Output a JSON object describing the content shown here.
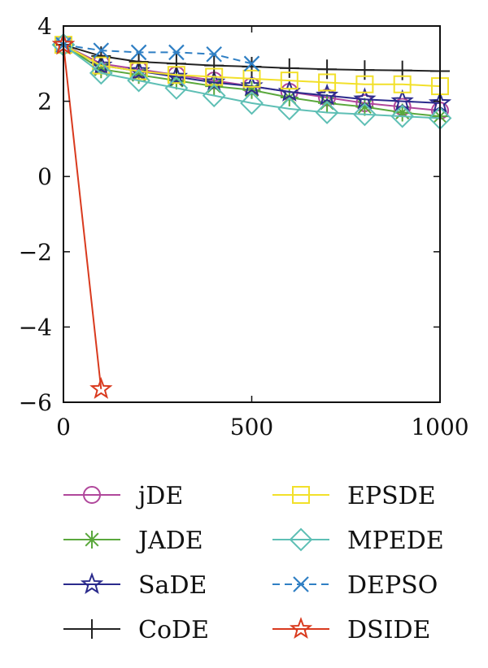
{
  "chart_data": {
    "type": "line",
    "title": "",
    "xlabel": "",
    "ylabel": "",
    "xlim": [
      0,
      1000
    ],
    "ylim": [
      -6,
      4
    ],
    "x_ticks": [
      "0",
      "500",
      "1000"
    ],
    "y_ticks": [
      "4",
      "2",
      "0",
      "−2",
      "−4",
      "−6"
    ],
    "y_tick_values": [
      4,
      2,
      0,
      -2,
      -4,
      -6
    ],
    "x_tick_values": [
      0,
      500,
      1000
    ],
    "grid": false,
    "legend_position": "bottom, two columns",
    "series": [
      {
        "name": "jDE",
        "color": "#b0479b",
        "marker": "circle",
        "dash": "solid",
        "x": [
          0,
          100,
          200,
          300,
          400,
          500,
          600,
          700,
          800,
          900,
          1000
        ],
        "y": [
          3.5,
          3.0,
          2.85,
          2.7,
          2.55,
          2.4,
          2.25,
          2.1,
          1.95,
          1.85,
          1.75
        ]
      },
      {
        "name": "JADE",
        "color": "#5aa83c",
        "marker": "asterisk",
        "dash": "solid",
        "x": [
          0,
          100,
          200,
          300,
          400,
          500,
          600,
          700,
          800,
          900,
          1000
        ],
        "y": [
          3.5,
          2.85,
          2.7,
          2.55,
          2.4,
          2.3,
          2.1,
          1.95,
          1.85,
          1.7,
          1.6
        ]
      },
      {
        "name": "SaDE",
        "color": "#2b2b8c",
        "marker": "star",
        "dash": "solid",
        "x": [
          0,
          100,
          200,
          300,
          400,
          500,
          600,
          700,
          800,
          900,
          1000
        ],
        "y": [
          3.5,
          2.95,
          2.8,
          2.65,
          2.5,
          2.4,
          2.25,
          2.15,
          2.05,
          2.0,
          1.95
        ]
      },
      {
        "name": "CoDE",
        "color": "#222222",
        "marker": "plus",
        "dash": "solid",
        "x": [
          0,
          100,
          200,
          300,
          400,
          500,
          600,
          700,
          800,
          900,
          1000
        ],
        "y": [
          3.5,
          3.2,
          3.05,
          3.0,
          2.95,
          2.92,
          2.88,
          2.85,
          2.83,
          2.82,
          2.8
        ]
      },
      {
        "name": "EPSDE",
        "color": "#f2e02a",
        "marker": "square",
        "dash": "solid",
        "x": [
          0,
          100,
          200,
          300,
          400,
          500,
          600,
          700,
          800,
          900,
          1000
        ],
        "y": [
          3.5,
          2.95,
          2.8,
          2.7,
          2.65,
          2.6,
          2.55,
          2.5,
          2.45,
          2.45,
          2.4
        ]
      },
      {
        "name": "MPEDE",
        "color": "#5ebfb5",
        "marker": "diamond",
        "dash": "solid",
        "x": [
          0,
          100,
          200,
          300,
          400,
          500,
          600,
          700,
          800,
          900,
          1000
        ],
        "y": [
          3.5,
          2.75,
          2.55,
          2.35,
          2.15,
          1.95,
          1.8,
          1.7,
          1.65,
          1.6,
          1.55
        ]
      },
      {
        "name": "DEPSO",
        "color": "#2f7fc4",
        "marker": "x",
        "dash": "dashed",
        "x": [
          0,
          100,
          200,
          300,
          400,
          500
        ],
        "y": [
          3.5,
          3.35,
          3.3,
          3.3,
          3.25,
          3.0
        ]
      },
      {
        "name": "DSIDE",
        "color": "#d93a1e",
        "marker": "star",
        "dash": "solid",
        "x": [
          0,
          100
        ],
        "y": [
          3.5,
          -5.65
        ]
      }
    ]
  }
}
